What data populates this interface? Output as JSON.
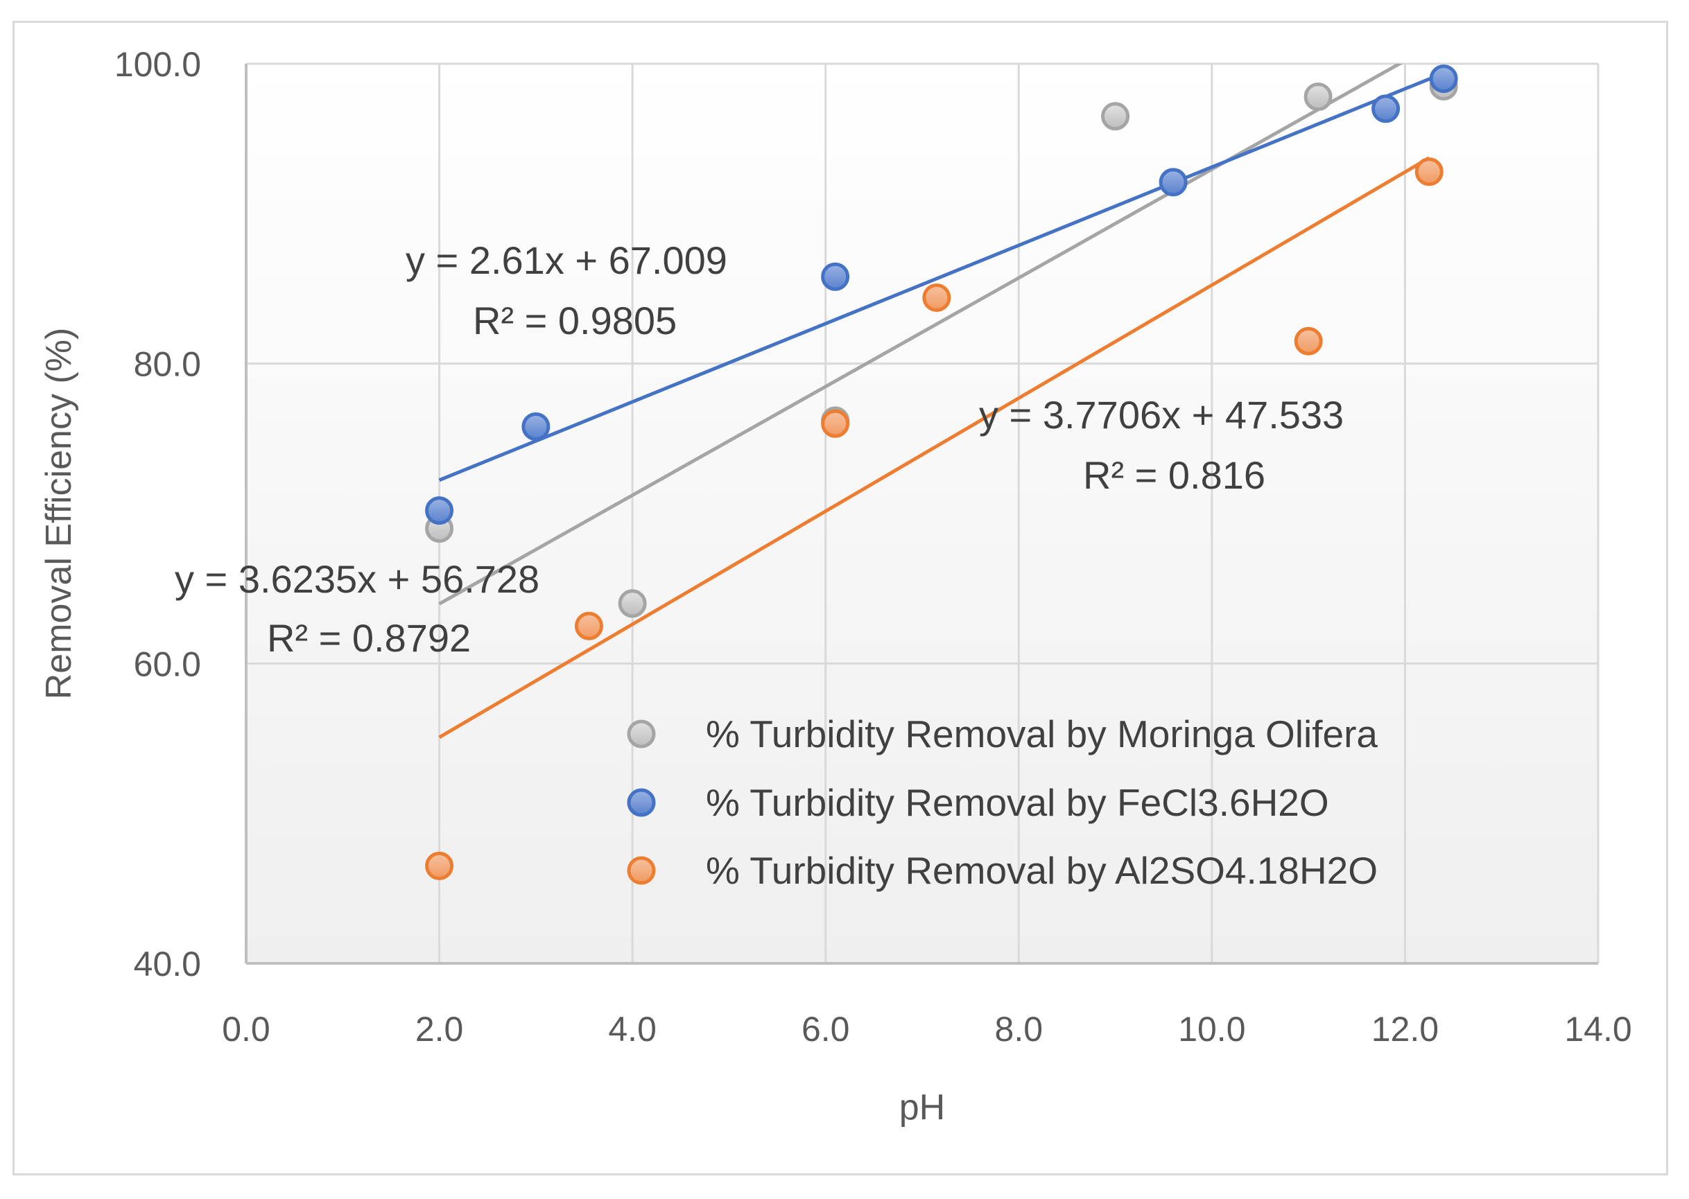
{
  "chart_data": {
    "type": "scatter",
    "title": "",
    "xlabel": "pH",
    "ylabel": "Removal Efficiency (%)",
    "xlim": [
      0,
      14
    ],
    "ylim": [
      40,
      100
    ],
    "x_ticks": [
      "0.0",
      "2.0",
      "4.0",
      "6.0",
      "8.0",
      "10.0",
      "12.0",
      "14.0"
    ],
    "y_ticks": [
      "40.0",
      "60.0",
      "80.0",
      "100.0"
    ],
    "grid": true,
    "legend_position": "lower-right",
    "series": [
      {
        "name": "% Turbidity Removal by Moringa Olifera",
        "color": "#a5a5a5",
        "points": [
          [
            2.0,
            69.0
          ],
          [
            4.0,
            64.0
          ],
          [
            6.1,
            76.2
          ],
          [
            9.0,
            96.5
          ],
          [
            11.1,
            97.8
          ],
          [
            12.4,
            98.5
          ]
        ],
        "trendline": {
          "slope": 3.6235,
          "intercept": 56.728,
          "x_range": [
            2.0,
            12.4
          ],
          "equation": "y = 3.6235x + 56.728",
          "r2": "R² = 0.8792"
        }
      },
      {
        "name": "% Turbidity Removal by FeCl3.6H2O",
        "color": "#4472c4",
        "points": [
          [
            2.0,
            70.2
          ],
          [
            3.0,
            75.8
          ],
          [
            6.1,
            85.8
          ],
          [
            9.6,
            92.1
          ],
          [
            11.8,
            97.0
          ],
          [
            12.4,
            99.0
          ]
        ],
        "trendline": {
          "slope": 2.61,
          "intercept": 67.009,
          "x_range": [
            2.0,
            12.4
          ],
          "equation": "y = 2.61x + 67.009",
          "r2": "R² = 0.9805"
        }
      },
      {
        "name": "% Turbidity Removal by Al2SO4.18H2O",
        "color": "#ed7d31",
        "points": [
          [
            2.0,
            46.5
          ],
          [
            3.55,
            62.5
          ],
          [
            6.1,
            76.0
          ],
          [
            7.15,
            84.4
          ],
          [
            11.0,
            81.5
          ],
          [
            12.25,
            92.8
          ]
        ],
        "trendline": {
          "slope": 3.7706,
          "intercept": 47.533,
          "x_range": [
            2.0,
            12.25
          ],
          "equation": "y = 3.7706x + 47.533",
          "r2": "R² = 0.816"
        }
      }
    ]
  }
}
